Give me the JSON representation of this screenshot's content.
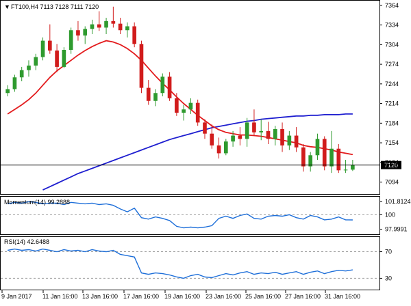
{
  "symbol_header": {
    "text": "FT100,H4  7113 7128 7111 7120"
  },
  "price_panel": {
    "y_ticks": [
      "7364",
      "7334",
      "7304",
      "7274",
      "7244",
      "7214",
      "7184",
      "7154",
      "7124",
      "7094"
    ],
    "y_min": 7080,
    "y_max": 7368,
    "last_price": "7120",
    "colors": {
      "bull": "#2e9a2e",
      "bear": "#d11c1c",
      "sma_fast": "#e31a1c",
      "sma_slow": "#1f1fd0",
      "price_line": "#000000"
    }
  },
  "momentum_panel": {
    "label": "Momentum(14) 99.2888",
    "y_ticks": [
      "101.8124",
      "100",
      "97.9991"
    ],
    "y_min": 97.5,
    "y_max": 102.2,
    "line_color": "#1e6fd9"
  },
  "rsi_panel": {
    "label": "RSI(14) 42.6488",
    "y_ticks": [
      "70",
      "30"
    ],
    "y_min": 15,
    "y_max": 90,
    "line_color": "#1e6fd9"
  },
  "x_axis": {
    "labels": [
      "9 Jan 2017",
      "11 Jan 16:00",
      "13 Jan 16:00",
      "17 Jan 16:00",
      "19 Jan 16:00",
      "23 Jan 16:00",
      "25 Jan 16:00",
      "27 Jan 16:00",
      "31 Jan 16:00"
    ]
  },
  "chart_data": {
    "type": "candlestick",
    "instrument": "FT100",
    "timeframe": "H4",
    "ohlc_last": {
      "open": 7113,
      "high": 7128,
      "low": 7111,
      "close": 7120
    },
    "candles": [
      [
        7230,
        7242,
        7225,
        7236
      ],
      [
        7236,
        7258,
        7232,
        7254
      ],
      [
        7254,
        7270,
        7248,
        7265
      ],
      [
        7265,
        7280,
        7255,
        7272
      ],
      [
        7272,
        7290,
        7265,
        7285
      ],
      [
        7285,
        7315,
        7280,
        7310
      ],
      [
        7310,
        7335,
        7290,
        7295
      ],
      [
        7295,
        7305,
        7262,
        7270
      ],
      [
        7270,
        7300,
        7268,
        7296
      ],
      [
        7296,
        7330,
        7290,
        7326
      ],
      [
        7326,
        7340,
        7310,
        7318
      ],
      [
        7318,
        7332,
        7305,
        7328
      ],
      [
        7328,
        7342,
        7320,
        7335
      ],
      [
        7335,
        7355,
        7325,
        7330
      ],
      [
        7330,
        7345,
        7320,
        7340
      ],
      [
        7340,
        7362,
        7330,
        7336
      ],
      [
        7336,
        7345,
        7320,
        7326
      ],
      [
        7326,
        7338,
        7315,
        7332
      ],
      [
        7332,
        7338,
        7300,
        7305
      ],
      [
        7305,
        7310,
        7230,
        7238
      ],
      [
        7238,
        7250,
        7212,
        7218
      ],
      [
        7218,
        7236,
        7210,
        7230
      ],
      [
        7230,
        7260,
        7225,
        7255
      ],
      [
        7255,
        7262,
        7218,
        7222
      ],
      [
        7222,
        7230,
        7195,
        7200
      ],
      [
        7200,
        7212,
        7188,
        7205
      ],
      [
        7205,
        7222,
        7198,
        7215
      ],
      [
        7215,
        7220,
        7180,
        7185
      ],
      [
        7185,
        7190,
        7160,
        7168
      ],
      [
        7168,
        7182,
        7145,
        7150
      ],
      [
        7150,
        7162,
        7130,
        7138
      ],
      [
        7138,
        7160,
        7135,
        7156
      ],
      [
        7156,
        7172,
        7148,
        7165
      ],
      [
        7165,
        7178,
        7150,
        7160
      ],
      [
        7160,
        7192,
        7148,
        7185
      ],
      [
        7185,
        7205,
        7165,
        7170
      ],
      [
        7170,
        7190,
        7158,
        7172
      ],
      [
        7172,
        7186,
        7152,
        7160
      ],
      [
        7160,
        7180,
        7150,
        7175
      ],
      [
        7175,
        7185,
        7140,
        7150
      ],
      [
        7150,
        7172,
        7143,
        7165
      ],
      [
        7165,
        7178,
        7140,
        7147
      ],
      [
        7147,
        7152,
        7110,
        7118
      ],
      [
        7118,
        7140,
        7110,
        7135
      ],
      [
        7135,
        7168,
        7128,
        7160
      ],
      [
        7160,
        7164,
        7112,
        7118
      ],
      [
        7118,
        7172,
        7108,
        7145
      ],
      [
        7145,
        7152,
        7108,
        7112
      ],
      [
        7112,
        7128,
        7108,
        7113
      ],
      [
        7113,
        7128,
        7111,
        7120
      ]
    ],
    "sma_fast": [
      7198,
      7205,
      7212,
      7220,
      7230,
      7242,
      7254,
      7264,
      7272,
      7280,
      7288,
      7295,
      7301,
      7306,
      7310,
      7308,
      7304,
      7298,
      7290,
      7280,
      7268,
      7256,
      7245,
      7235,
      7224,
      7214,
      7205,
      7196,
      7188,
      7180,
      7174,
      7170,
      7168,
      7166,
      7166,
      7165,
      7164,
      7162,
      7160,
      7158,
      7156,
      7154,
      7150,
      7148,
      7147,
      7145,
      7143,
      7140,
      7138,
      7136
    ],
    "sma_slow": [
      7060,
      7064,
      7068,
      7072,
      7077,
      7082,
      7087,
      7092,
      7097,
      7102,
      7107,
      7111,
      7115,
      7119,
      7123,
      7127,
      7131,
      7135,
      7139,
      7143,
      7147,
      7151,
      7155,
      7159,
      7162,
      7165,
      7168,
      7171,
      7174,
      7177,
      7179,
      7181,
      7183,
      7185,
      7187,
      7188,
      7190,
      7191,
      7192,
      7193,
      7194,
      7195,
      7195,
      7196,
      7196,
      7197,
      7197,
      7197,
      7198,
      7198
    ],
    "momentum": [
      101.5,
      101.7,
      101.6,
      101.8,
      101.7,
      101.5,
      101.6,
      101.6,
      101.4,
      101.7,
      101.6,
      101.5,
      101.6,
      101.4,
      101.5,
      101.3,
      100.8,
      100.4,
      100.9,
      99.6,
      99.4,
      99.7,
      99.5,
      99.2,
      98.4,
      98.2,
      98.3,
      98.2,
      98.3,
      98.5,
      99.5,
      99.8,
      99.5,
      99.9,
      100.1,
      99.5,
      99.4,
      99.8,
      99.9,
      99.8,
      100.0,
      99.6,
      99.4,
      99.9,
      99.7,
      99.3,
      99.4,
      99.7,
      99.3,
      99.29
    ],
    "rsi": [
      72,
      74,
      72,
      73,
      71,
      74,
      72,
      70,
      73,
      71,
      72,
      70,
      73,
      71,
      70,
      72,
      66,
      64,
      62,
      38,
      36,
      38,
      37,
      35,
      32,
      30,
      34,
      36,
      32,
      31,
      34,
      37,
      35,
      38,
      40,
      36,
      38,
      37,
      39,
      36,
      38,
      40,
      36,
      39,
      41,
      37,
      40,
      42,
      41,
      42.65
    ]
  }
}
